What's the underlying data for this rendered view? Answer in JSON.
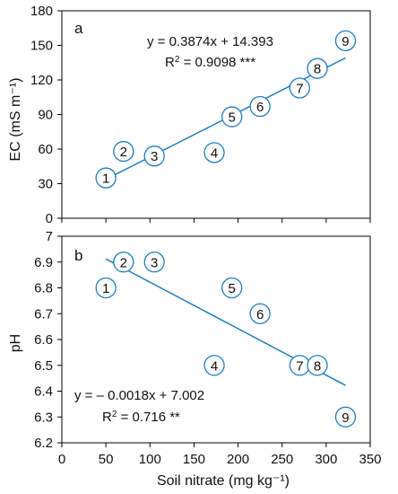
{
  "colors": {
    "accent": "#1a7fc0",
    "axis": "#000000",
    "text": "#111111"
  },
  "x_axis": {
    "label": "Soil nitrate (mg kg⁻¹)",
    "ticks": [
      0,
      50,
      100,
      150,
      200,
      250,
      300,
      350
    ],
    "range": [
      0,
      350
    ]
  },
  "chart_data": [
    {
      "type": "scatter",
      "panel": "a",
      "ylabel": "EC (mS m⁻¹)",
      "ylim": [
        0,
        180
      ],
      "yticks": [
        0,
        30,
        60,
        90,
        120,
        150,
        180
      ],
      "points": [
        {
          "label": "1",
          "x": 50,
          "y": 35
        },
        {
          "label": "2",
          "x": 70,
          "y": 58
        },
        {
          "label": "3",
          "x": 105,
          "y": 54
        },
        {
          "label": "4",
          "x": 173,
          "y": 57
        },
        {
          "label": "5",
          "x": 193,
          "y": 88
        },
        {
          "label": "6",
          "x": 225,
          "y": 97
        },
        {
          "label": "7",
          "x": 270,
          "y": 113
        },
        {
          "label": "8",
          "x": 290,
          "y": 130
        },
        {
          "label": "9",
          "x": 322,
          "y": 154
        }
      ],
      "fit": {
        "slope": 0.3874,
        "intercept": 14.393,
        "x_range": [
          50,
          322
        ]
      },
      "equation": "y = 0.3874x + 14.393",
      "r2_prefix": "R",
      "r2_text": " = 0.9098 ***"
    },
    {
      "type": "scatter",
      "panel": "b",
      "ylabel": "pH",
      "ylim": [
        6.2,
        7.0
      ],
      "yticks": [
        "6.2",
        "6.3",
        "6.4",
        "6.5",
        "6.6",
        "6.7",
        "6.8",
        "6.9",
        "7"
      ],
      "points": [
        {
          "label": "1",
          "x": 50,
          "y": 6.8
        },
        {
          "label": "2",
          "x": 70,
          "y": 6.9
        },
        {
          "label": "3",
          "x": 105,
          "y": 6.9
        },
        {
          "label": "4",
          "x": 173,
          "y": 6.5
        },
        {
          "label": "5",
          "x": 193,
          "y": 6.8
        },
        {
          "label": "6",
          "x": 225,
          "y": 6.7
        },
        {
          "label": "7",
          "x": 270,
          "y": 6.5
        },
        {
          "label": "8",
          "x": 290,
          "y": 6.5
        },
        {
          "label": "9",
          "x": 322,
          "y": 6.3
        }
      ],
      "fit": {
        "slope": -0.0018,
        "intercept": 7.002,
        "x_range": [
          50,
          322
        ]
      },
      "equation": "y = – 0.0018x + 7.002",
      "r2_prefix": "R",
      "r2_text": " = 0.716 **"
    }
  ]
}
